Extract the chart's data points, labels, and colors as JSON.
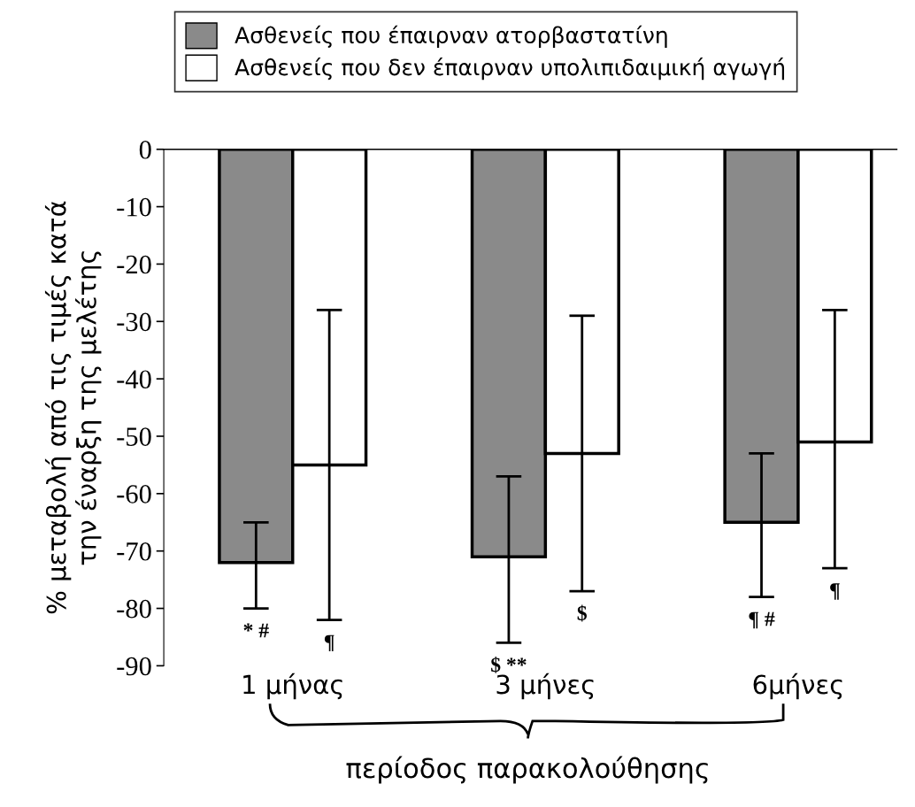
{
  "chart_data": {
    "type": "bar",
    "categories": [
      "1 μήνας",
      "3 μήνες",
      "6μήνες"
    ],
    "series": [
      {
        "name": "Ασθενείς που έπαιρναν ατορβαστατίνη",
        "color": "#8a8a8a",
        "values": [
          -72,
          -71,
          -65
        ],
        "errors": [
          [
            -80,
            -65
          ],
          [
            -86,
            -57
          ],
          [
            -78,
            -53
          ]
        ]
      },
      {
        "name": "Ασθενείς που δεν έπαιρναν υπολιπιδαιμική αγωγή",
        "color": "#ffffff",
        "values": [
          -55,
          -53,
          -51
        ],
        "errors": [
          [
            -82,
            -28
          ],
          [
            -77,
            -29
          ],
          [
            -73,
            -28
          ]
        ]
      }
    ],
    "ylabel": "% μεταβολή από τις τιμές κατά\nτην έναρξη της μελέτης",
    "xlabel": "περίοδος παρακολούθησης",
    "ylim": [
      -90,
      0
    ],
    "yticks": [
      0,
      -10,
      -20,
      -30,
      -40,
      -50,
      -60,
      -70,
      -80,
      -90
    ],
    "legend": "top",
    "grid": false,
    "annotations": [
      "* #",
      "¶",
      "$ **",
      "$",
      "¶ #",
      "¶"
    ]
  }
}
